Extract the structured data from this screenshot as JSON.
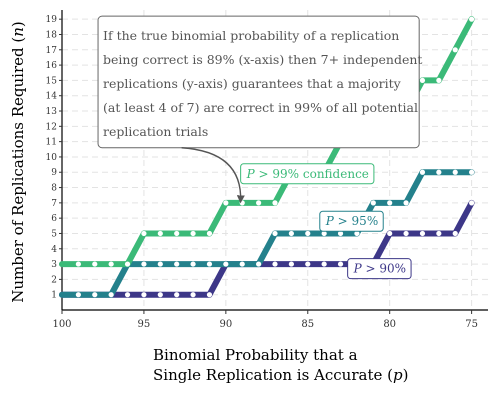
{
  "chart_data": {
    "type": "line",
    "xlabel_line1": "Binomial Probability that a",
    "xlabel_line2_prefix": "Single Replication is Accurate (",
    "xlabel_var": "p",
    "xlabel_line2_suffix": ")",
    "ylabel_prefix": "Number of Replications Required (",
    "ylabel_var": "n",
    "ylabel_suffix": ")",
    "xlim": [
      100,
      74
    ],
    "ylim": [
      0,
      19.6
    ],
    "x_reversed": true,
    "x_ticks": [
      100,
      95,
      90,
      85,
      80,
      75
    ],
    "x_tick_labels": [
      "100",
      "95",
      "90",
      "85",
      "80",
      "75"
    ],
    "y_ticks": [
      1,
      2,
      3,
      4,
      5,
      6,
      7,
      8,
      9,
      10,
      11,
      12,
      13,
      14,
      15,
      16,
      17,
      18,
      19
    ],
    "y_tick_labels": [
      "1",
      "2",
      "3",
      "4",
      "5",
      "6",
      "7",
      "8",
      "9",
      "10",
      "11",
      "12",
      "13",
      "14",
      "15",
      "16",
      "17",
      "18",
      "19"
    ],
    "grid": true,
    "colors": {
      "c99": "#3bba78",
      "c95": "#24818c",
      "c90": "#3d3788",
      "annotation_border": "#666666",
      "annotation_arrow": "#555555"
    },
    "series": [
      {
        "id": "s90",
        "name": "P > 90%",
        "color": "#3d3788",
        "x": [
          99,
          98,
          97,
          96,
          95,
          94,
          93,
          92,
          91,
          90,
          89,
          88,
          87,
          86,
          85,
          84,
          83,
          82,
          81,
          80,
          79,
          78,
          77,
          76,
          75
        ],
        "y": [
          1,
          1,
          1,
          1,
          1,
          1,
          1,
          1,
          1,
          3,
          3,
          3,
          3,
          3,
          3,
          3,
          3,
          3,
          3,
          5,
          5,
          5,
          5,
          5,
          7
        ]
      },
      {
        "id": "s95",
        "name": "P > 95%",
        "color": "#24818c",
        "x": [
          99,
          98,
          97,
          96,
          95,
          94,
          93,
          92,
          91,
          90,
          89,
          88,
          87,
          86,
          85,
          84,
          83,
          82,
          81,
          80,
          79,
          78,
          77,
          76,
          75
        ],
        "y": [
          1,
          1,
          1,
          3,
          3,
          3,
          3,
          3,
          3,
          3,
          3,
          3,
          5,
          5,
          5,
          5,
          5,
          5,
          7,
          7,
          7,
          9,
          9,
          9,
          9
        ]
      },
      {
        "id": "s99",
        "name": "P > 99% confidence",
        "color": "#3bba78",
        "x": [
          99,
          98,
          97,
          96,
          95,
          94,
          93,
          92,
          91,
          90,
          89,
          88,
          87,
          86,
          85,
          84,
          83,
          82,
          81,
          80,
          79,
          78,
          77,
          76,
          75
        ],
        "y": [
          3,
          3,
          3,
          3,
          5,
          5,
          5,
          5,
          5,
          7,
          7,
          7,
          7,
          9,
          9,
          9,
          11,
          11,
          11,
          13,
          13,
          15,
          15,
          17,
          19
        ]
      }
    ],
    "series_labels": [
      {
        "series": "s99",
        "text_prefix": "",
        "text_var": "P",
        "text_suffix": " > 99% confidence",
        "at_x": 85,
        "at_y": 8.9
      },
      {
        "series": "s95",
        "text_prefix": "",
        "text_var": "P",
        "text_suffix": " > 95%",
        "at_x": 82.3,
        "at_y": 5.8
      },
      {
        "series": "s90",
        "text_prefix": "",
        "text_var": "P",
        "text_suffix": " > 90%",
        "at_x": 80.6,
        "at_y": 2.7
      }
    ],
    "annotation": {
      "lines": [
        "If the true binomial probability of a replication",
        "being correct is 89% (x-axis) then 7+ independent",
        "replications (y-axis) guarantees that a majority",
        "(at least 4 of 7) are correct in 99% of all potential",
        "replication trials"
      ],
      "box_x": [
        97.8,
        78.2
      ],
      "box_y": [
        19.2,
        10.6
      ],
      "arrow_from": [
        92.7,
        10.6
      ],
      "arrow_to": [
        89.1,
        7.1
      ]
    }
  }
}
